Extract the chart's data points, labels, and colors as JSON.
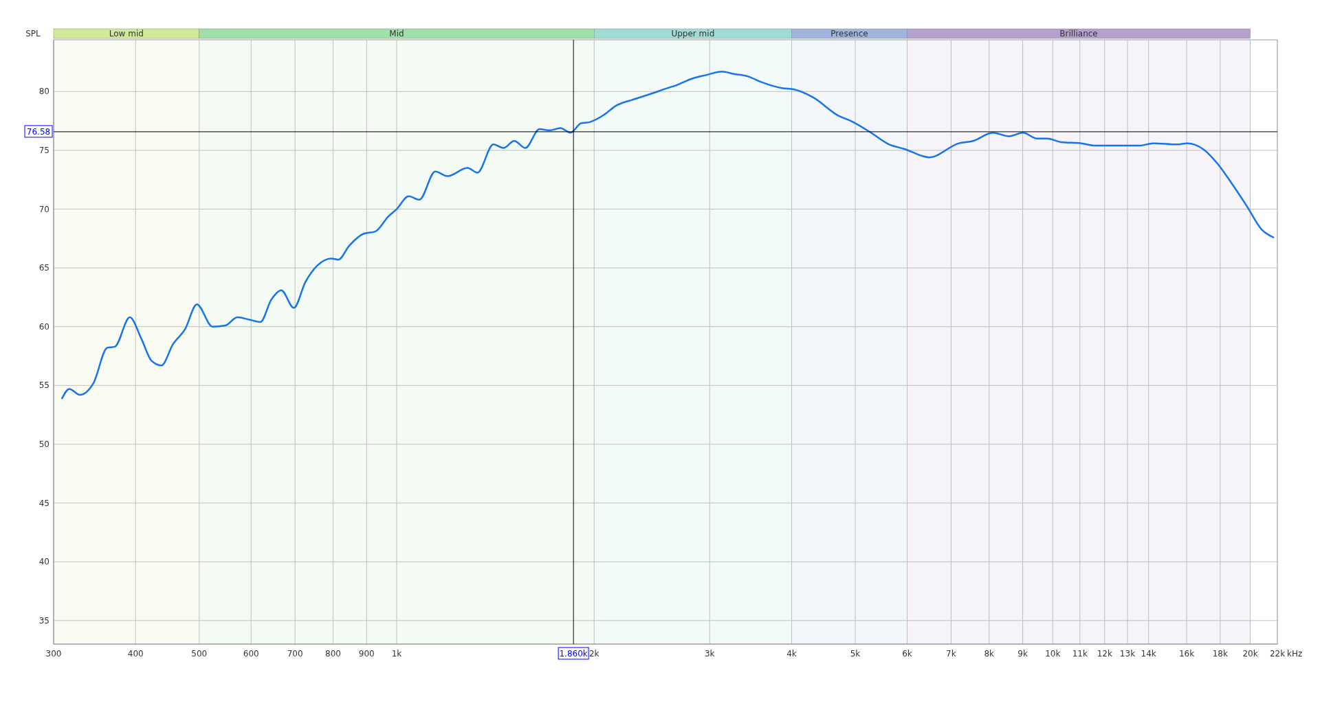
{
  "chart_data": {
    "type": "line",
    "ylabel": "SPL",
    "log": "x",
    "grid": true,
    "line_style": "solid",
    "marker": "none",
    "xlim": [
      300,
      22000
    ],
    "ylim": [
      33,
      84.4
    ],
    "xticks": [
      300,
      400,
      500,
      600,
      700,
      800,
      900,
      {
        "value": 1000,
        "label": "1k"
      },
      {
        "value": 2000,
        "label": "2k"
      },
      {
        "value": 3000,
        "label": "3k"
      },
      {
        "value": 4000,
        "label": "4k"
      },
      {
        "value": 5000,
        "label": "5k"
      },
      {
        "value": 6000,
        "label": "6k"
      },
      {
        "value": 7000,
        "label": "7k"
      },
      {
        "value": 8000,
        "label": "8k"
      },
      {
        "value": 9000,
        "label": "9k"
      },
      {
        "value": 10000,
        "label": "10k"
      },
      {
        "value": 11000,
        "label": "11k"
      },
      {
        "value": 12000,
        "label": "12k"
      },
      {
        "value": 13000,
        "label": "13k"
      },
      {
        "value": 14000,
        "label": "14k"
      },
      {
        "value": 16000,
        "label": "16k"
      },
      {
        "value": 18000,
        "label": "18k"
      },
      {
        "value": 20000,
        "label": "20k"
      },
      {
        "value": 22000,
        "label": "22k"
      }
    ],
    "xlabel": "kHz",
    "yticks": [
      35,
      40,
      45,
      50,
      55,
      60,
      65,
      70,
      75,
      80
    ],
    "bands": [
      {
        "axis": "x",
        "from": 300,
        "to": 500,
        "label": "Low mid",
        "color": "#d4e89a"
      },
      {
        "axis": "x",
        "from": 500,
        "to": 2000,
        "label": "Mid",
        "color": "#a0e0a8"
      },
      {
        "axis": "x",
        "from": 2000,
        "to": 4000,
        "label": "Upper mid",
        "color": "#a0dcd4"
      },
      {
        "axis": "x",
        "from": 4000,
        "to": 6000,
        "label": "Presence",
        "color": "#a0b4e0"
      },
      {
        "axis": "x",
        "from": 6000,
        "to": 20000,
        "label": "Brilliance",
        "color": "#b4a0cc"
      }
    ],
    "ref_lines": [
      {
        "axis": "x",
        "value": 1860,
        "label": "1.860k",
        "color": "#000000"
      },
      {
        "axis": "y",
        "value": 76.58,
        "label": "76.58",
        "color": "#000000"
      }
    ],
    "series": [
      {
        "color": "#1874e8",
        "x": [
          309,
          317,
          329,
          345,
          362,
          372,
          392,
          408,
          423,
          438,
          456,
          476,
          496,
          524,
          548,
          572,
          596,
          620,
          644,
          667,
          697,
          726,
          757,
          795,
          815,
          847,
          890,
          928,
          972,
          1000,
          1043,
          1083,
          1145,
          1195,
          1282,
          1328,
          1404,
          1455,
          1511,
          1571,
          1651,
          1713,
          1776,
          1841,
          1910,
          1969,
          2068,
          2160,
          2286,
          2438,
          2557,
          2686,
          2820,
          2961,
          3132,
          3267,
          3428,
          3599,
          3861,
          4025,
          4315,
          4695,
          4965,
          5251,
          5631,
          5954,
          6345,
          6480,
          7197,
          7561,
          8107,
          8575,
          9008,
          9462,
          9800,
          10295,
          11045,
          11602,
          12540,
          13553,
          14230,
          15480,
          16030,
          16960,
          17810,
          18840,
          19790,
          20790,
          21690
        ],
        "values": [
          53.9,
          54.7,
          54.2,
          55.2,
          58.2,
          58.3,
          60.8,
          59.0,
          57.1,
          56.7,
          58.5,
          59.8,
          61.9,
          60.0,
          60.1,
          60.8,
          60.6,
          60.4,
          62.3,
          63.1,
          61.6,
          63.8,
          65.2,
          65.8,
          65.7,
          66.9,
          67.9,
          68.1,
          69.4,
          70.0,
          71.1,
          70.8,
          73.2,
          72.8,
          73.5,
          73.1,
          75.5,
          75.2,
          75.8,
          75.2,
          76.8,
          76.7,
          76.9,
          76.5,
          77.3,
          77.4,
          78.0,
          78.8,
          79.3,
          79.8,
          80.2,
          80.6,
          81.1,
          81.4,
          81.7,
          81.5,
          81.3,
          80.8,
          80.3,
          80.2,
          79.5,
          78.0,
          77.4,
          76.6,
          75.5,
          75.1,
          74.5,
          74.4,
          75.6,
          75.8,
          76.5,
          76.2,
          76.5,
          76.0,
          76.0,
          75.7,
          75.6,
          75.4,
          75.4,
          75.4,
          75.6,
          75.5,
          75.6,
          75.1,
          73.9,
          72.0,
          70.2,
          68.3,
          67.6
        ]
      }
    ]
  }
}
